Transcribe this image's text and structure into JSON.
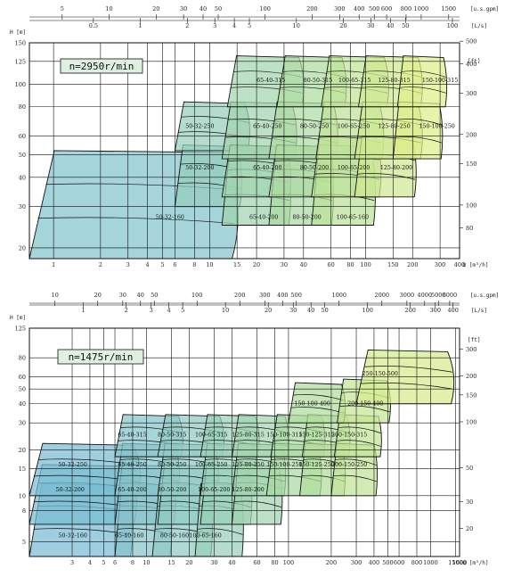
{
  "chart_data": [
    {
      "type": "area",
      "speed_label": "n=2950r/min",
      "units": {
        "q_m3h": "Q [m³/h]",
        "q_ls": "[L/s]",
        "q_gpm": "[u.s.gpm]",
        "h_m": "H [m]",
        "h_ft": "[ft]"
      },
      "x_axis_m3h": {
        "range": [
          0.7,
          400
        ],
        "log": true,
        "ticks": [
          "1",
          "2",
          "3",
          "4",
          "5",
          "6",
          "8",
          "10",
          "15",
          "20",
          "30",
          "40",
          "60",
          "80",
          "100",
          "150",
          "200",
          "300",
          "400"
        ]
      },
      "x_axis_ls": {
        "ticks": [
          "0.5",
          "1",
          "2",
          "3",
          "4",
          "5",
          "10",
          "20",
          "30",
          "40",
          "50",
          "100"
        ]
      },
      "x_axis_gpm": {
        "ticks": [
          "5",
          "10",
          "20",
          "30",
          "40",
          "50",
          "100",
          "200",
          "300",
          "400",
          "500",
          "600",
          "800",
          "1000",
          "1500"
        ]
      },
      "y_axis_m": {
        "range": [
          18,
          150
        ],
        "log": true,
        "ticks": [
          "20",
          "30",
          "40",
          "50",
          "60",
          "80",
          "100",
          "125",
          "150"
        ]
      },
      "y_axis_ft": {
        "ticks": [
          "80",
          "100",
          "150",
          "200",
          "300",
          "400",
          "500"
        ]
      },
      "regions": [
        {
          "label": "50-32-160",
          "q": [
            0.7,
            15
          ],
          "h": [
            18,
            52
          ],
          "label_at": [
            4.5,
            27
          ]
        },
        {
          "label": "50-32-200",
          "q": [
            6,
            16
          ],
          "h": [
            30,
            55
          ],
          "label_at": [
            7,
            44
          ]
        },
        {
          "label": "50-32-250",
          "q": [
            6,
            18
          ],
          "h": [
            52,
            84
          ],
          "label_at": [
            7,
            66
          ]
        },
        {
          "label": "65-40-200",
          "q": [
            12,
            33
          ],
          "h": [
            25,
            55
          ],
          "label_at": [
            18,
            27
          ]
        },
        {
          "label": "65-40-200",
          "q": [
            12,
            33
          ],
          "h": [
            33,
            55
          ],
          "label_at": [
            19,
            44
          ]
        },
        {
          "label": "65-40-250",
          "q": [
            12,
            36
          ],
          "h": [
            48,
            84
          ],
          "label_at": [
            19,
            66
          ]
        },
        {
          "label": "65-40-315",
          "q": [
            13,
            40
          ],
          "h": [
            80,
            132
          ],
          "label_at": [
            20,
            104
          ]
        },
        {
          "label": "80-50-200",
          "q": [
            24,
            62
          ],
          "h": [
            25,
            55
          ],
          "label_at": [
            34,
            27
          ]
        },
        {
          "label": "80-50-200",
          "q": [
            24,
            62
          ],
          "h": [
            33,
            55
          ],
          "label_at": [
            38,
            44
          ]
        },
        {
          "label": "80-50-250",
          "q": [
            24,
            66
          ],
          "h": [
            48,
            84
          ],
          "label_at": [
            38,
            66
          ]
        },
        {
          "label": "80-50-315",
          "q": [
            27,
            75
          ],
          "h": [
            80,
            132
          ],
          "label_at": [
            40,
            104
          ]
        },
        {
          "label": "100-65-160",
          "q": [
            45,
            115
          ],
          "h": [
            25,
            55
          ],
          "label_at": [
            65,
            27
          ]
        },
        {
          "label": "100-65-200",
          "q": [
            45,
            125
          ],
          "h": [
            33,
            60
          ],
          "label_at": [
            66,
            44
          ]
        },
        {
          "label": "100-65-250",
          "q": [
            48,
            130
          ],
          "h": [
            48,
            84
          ],
          "label_at": [
            66,
            66
          ]
        },
        {
          "label": "100-65-315",
          "q": [
            52,
            140
          ],
          "h": [
            80,
            132
          ],
          "label_at": [
            67,
            104
          ]
        },
        {
          "label": "125-80-200",
          "q": [
            85,
            210
          ],
          "h": [
            33,
            60
          ],
          "label_at": [
            124,
            44
          ]
        },
        {
          "label": "125-80-250",
          "q": [
            85,
            230
          ],
          "h": [
            48,
            84
          ],
          "label_at": [
            120,
            66
          ]
        },
        {
          "label": "125-80-315",
          "q": [
            90,
            230
          ],
          "h": [
            80,
            132
          ],
          "label_at": [
            120,
            104
          ]
        },
        {
          "label": "150-100-250",
          "q": [
            150,
            310
          ],
          "h": [
            48,
            84
          ],
          "label_at": [
            220,
            66
          ]
        },
        {
          "label": "150-100-315",
          "q": [
            160,
            330
          ],
          "h": [
            80,
            132
          ],
          "label_at": [
            230,
            104
          ]
        }
      ]
    },
    {
      "type": "area",
      "speed_label": "n=1475r/min",
      "units": {
        "q_m3h": "Q [m³/h]",
        "q_ls": "[L/s]",
        "q_gpm": "[u.s.gpm]",
        "h_m": "H [m]",
        "h_ft": "[ft]"
      },
      "x_axis_m3h": {
        "range": [
          1.5,
          1600
        ],
        "log": true,
        "ticks": [
          "3",
          "4",
          "5",
          "6",
          "8",
          "10",
          "15",
          "20",
          "30",
          "40",
          "60",
          "80",
          "100",
          "200",
          "300",
          "400",
          "500",
          "600",
          "800",
          "1000",
          "1500",
          "1600"
        ]
      },
      "x_axis_ls": {
        "ticks": [
          "1",
          "2",
          "3",
          "4",
          "5",
          "10",
          "20",
          "30",
          "40",
          "50",
          "100",
          "200",
          "300",
          "400"
        ]
      },
      "x_axis_gpm": {
        "ticks": [
          "10",
          "20",
          "30",
          "40",
          "50",
          "100",
          "200",
          "300",
          "400",
          "500",
          "1000",
          "2000",
          "3000",
          "4000",
          "5000",
          "6000"
        ]
      },
      "y_axis_m": {
        "range": [
          4,
          125
        ],
        "log": true,
        "ticks": [
          "5",
          "8",
          "10",
          "15",
          "20",
          "30",
          "40",
          "50",
          "60",
          "80",
          "125"
        ]
      },
      "y_axis_ft": {
        "ticks": [
          "20",
          "30",
          "50",
          "100",
          "150",
          "200",
          "300"
        ]
      },
      "regions": [
        {
          "label": "50-32-160",
          "q": [
            1.5,
            8
          ],
          "h": [
            4,
            12
          ],
          "label_at": [
            2.4,
            5.5
          ]
        },
        {
          "label": "50-32-200",
          "q": [
            1.5,
            8.5
          ],
          "h": [
            6.5,
            16
          ],
          "label_at": [
            2.3,
            11
          ]
        },
        {
          "label": "50-32-250",
          "q": [
            1.5,
            9
          ],
          "h": [
            10,
            22
          ],
          "label_at": [
            2.4,
            16
          ]
        },
        {
          "label": "65-40-160",
          "q": [
            6,
            15
          ],
          "h": [
            4,
            12
          ],
          "label_at": [
            6,
            5.5
          ]
        },
        {
          "label": "65-40-200",
          "q": [
            6,
            16
          ],
          "h": [
            6.5,
            16
          ],
          "label_at": [
            6.3,
            11
          ]
        },
        {
          "label": "65-40-250",
          "q": [
            6,
            17
          ],
          "h": [
            10,
            22
          ],
          "label_at": [
            6.3,
            16
          ]
        },
        {
          "label": "65-40-315",
          "q": [
            6,
            18
          ],
          "h": [
            18,
            34
          ],
          "label_at": [
            6.3,
            25
          ]
        },
        {
          "label": "80-50-160",
          "q": [
            11,
            29
          ],
          "h": [
            4,
            12
          ],
          "label_at": [
            12.5,
            5.5
          ]
        },
        {
          "label": "80-50-200",
          "q": [
            12,
            30
          ],
          "h": [
            6.5,
            16
          ],
          "label_at": [
            12,
            11
          ]
        },
        {
          "label": "80-50-250",
          "q": [
            12,
            32
          ],
          "h": [
            10,
            22
          ],
          "label_at": [
            12,
            16
          ]
        },
        {
          "label": "80-50-315",
          "q": [
            12,
            35
          ],
          "h": [
            18,
            34
          ],
          "label_at": [
            12,
            25
          ]
        },
        {
          "label": "100-65-160",
          "q": [
            22,
            48
          ],
          "h": [
            4,
            12
          ],
          "label_at": [
            20,
            5.5
          ]
        },
        {
          "label": "100-65-200",
          "q": [
            24,
            55
          ],
          "h": [
            6.5,
            16
          ],
          "label_at": [
            23,
            11
          ]
        },
        {
          "label": "100-65-250",
          "q": [
            24,
            60
          ],
          "h": [
            10,
            22
          ],
          "label_at": [
            22,
            16
          ]
        },
        {
          "label": "100-65-315",
          "q": [
            24,
            62
          ],
          "h": [
            18,
            34
          ],
          "label_at": [
            22,
            25
          ]
        },
        {
          "label": "125-80-200",
          "q": [
            40,
            90
          ],
          "h": [
            6.5,
            16
          ],
          "label_at": [
            40,
            11
          ]
        },
        {
          "label": "125-80-250",
          "q": [
            40,
            95
          ],
          "h": [
            10,
            22
          ],
          "label_at": [
            40,
            16
          ]
        },
        {
          "label": "125-80-315",
          "q": [
            40,
            100
          ],
          "h": [
            18,
            34
          ],
          "label_at": [
            40,
            25
          ]
        },
        {
          "label": "150-100-250",
          "q": [
            70,
            170
          ],
          "h": [
            10,
            22
          ],
          "label_at": [
            70,
            16
          ]
        },
        {
          "label": "150-100-315",
          "q": [
            75,
            180
          ],
          "h": [
            18,
            34
          ],
          "label_at": [
            70,
            25
          ]
        },
        {
          "label": "150-125-250",
          "q": [
            120,
            250
          ],
          "h": [
            10,
            22
          ],
          "label_at": [
            118,
            16
          ]
        },
        {
          "label": "150-125-315",
          "q": [
            125,
            270
          ],
          "h": [
            18,
            34
          ],
          "label_at": [
            118,
            25
          ]
        },
        {
          "label": "200-150-250",
          "q": [
            200,
            420
          ],
          "h": [
            10,
            22
          ],
          "label_at": [
            200,
            16
          ]
        },
        {
          "label": "200-150-315",
          "q": [
            210,
            450
          ],
          "h": [
            18,
            34
          ],
          "label_at": [
            200,
            25
          ]
        },
        {
          "label": "150-100-400",
          "q": [
            100,
            250
          ],
          "h": [
            30,
            55
          ],
          "label_at": [
            110,
            40
          ]
        },
        {
          "label": "200-150-400",
          "q": [
            220,
            520
          ],
          "h": [
            30,
            58
          ],
          "label_at": [
            260,
            40
          ]
        },
        {
          "label": "250-150-500",
          "q": [
            300,
            1450
          ],
          "h": [
            40,
            90
          ],
          "label_at": [
            330,
            63
          ]
        }
      ]
    }
  ]
}
